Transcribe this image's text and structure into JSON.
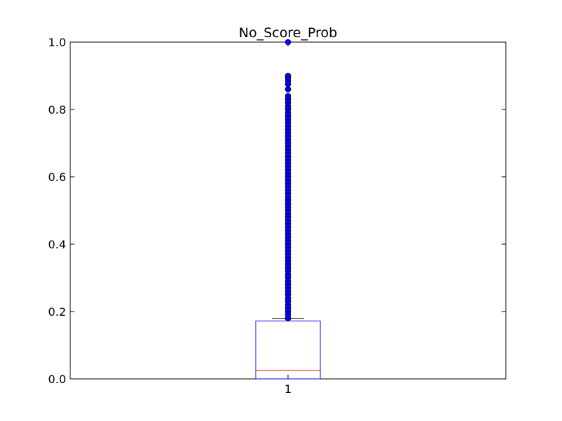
{
  "chart_data": {
    "type": "box",
    "title": "No_Score_Prob",
    "xlabel": "",
    "ylabel": "",
    "ylim": [
      0.0,
      1.0
    ],
    "yticks": [
      "0.0",
      "0.2",
      "0.4",
      "0.6",
      "0.8",
      "1.0"
    ],
    "categories": [
      "1"
    ],
    "grid": false,
    "series": [
      {
        "category": "1",
        "min": 0.0,
        "q1": 0.0,
        "median": 0.025,
        "q3": 0.172,
        "whisker_low": 0.0,
        "whisker_high": 0.18,
        "outliers": [
          0.18,
          0.19,
          0.2,
          0.21,
          0.22,
          0.23,
          0.24,
          0.25,
          0.26,
          0.27,
          0.28,
          0.29,
          0.3,
          0.31,
          0.32,
          0.33,
          0.34,
          0.35,
          0.36,
          0.37,
          0.38,
          0.39,
          0.4,
          0.41,
          0.42,
          0.43,
          0.44,
          0.45,
          0.46,
          0.47,
          0.48,
          0.49,
          0.5,
          0.51,
          0.52,
          0.53,
          0.54,
          0.55,
          0.56,
          0.57,
          0.58,
          0.59,
          0.6,
          0.61,
          0.62,
          0.63,
          0.64,
          0.65,
          0.66,
          0.67,
          0.68,
          0.69,
          0.7,
          0.71,
          0.72,
          0.73,
          0.74,
          0.75,
          0.76,
          0.77,
          0.78,
          0.79,
          0.8,
          0.81,
          0.82,
          0.83,
          0.84,
          0.86,
          0.875,
          0.885,
          0.895,
          0.9,
          1.0
        ]
      }
    ],
    "colors": {
      "box": "#0000ff",
      "median": "#ff0000",
      "whisker": "#000000",
      "outlier_fill": "#0000ff",
      "axes": "#000000"
    }
  }
}
